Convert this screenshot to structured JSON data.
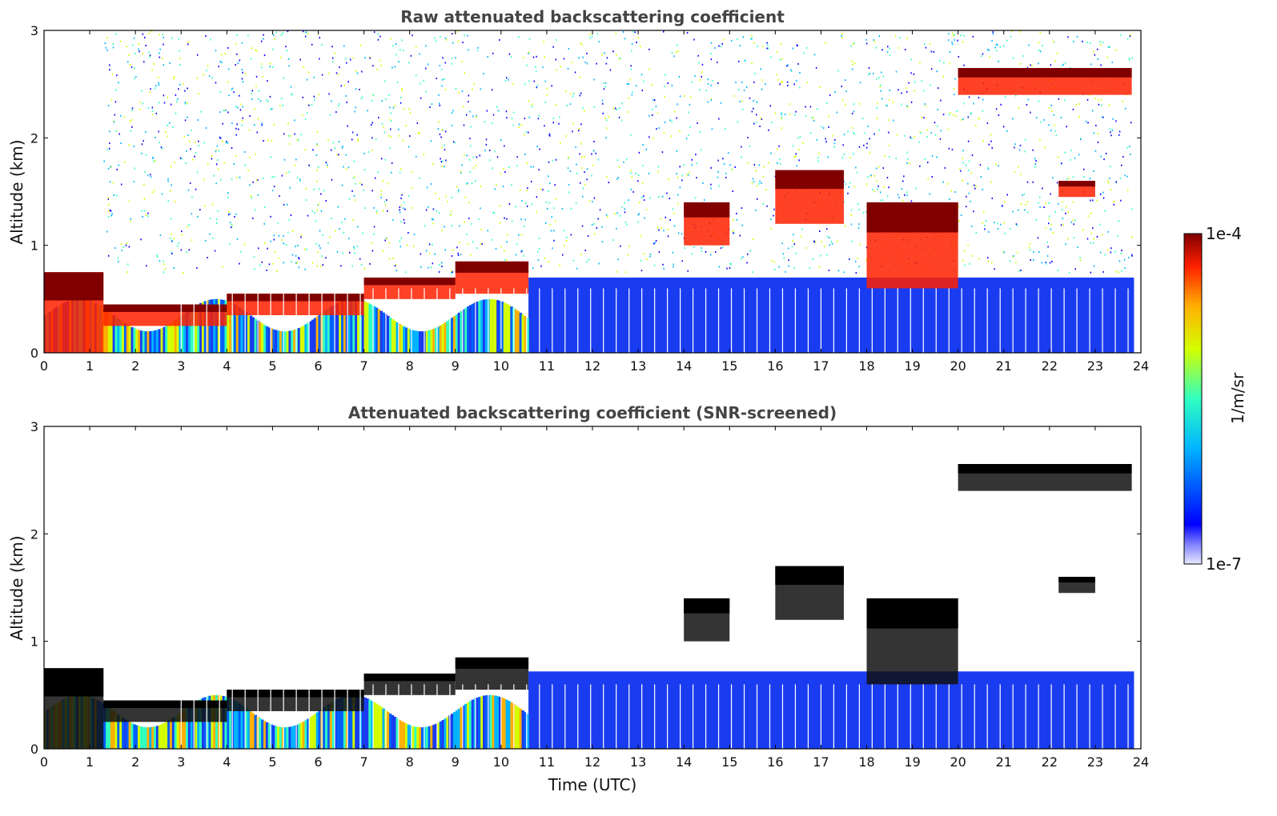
{
  "chart_data": [
    {
      "type": "heatmap",
      "title": "Raw attenuated backscattering coefficient",
      "xlabel": "",
      "ylabel": "Altitude (km)",
      "xlim": [
        0,
        24
      ],
      "ylim": [
        0,
        3
      ],
      "x_ticks": [
        "0",
        "1",
        "2",
        "3",
        "4",
        "5",
        "6",
        "7",
        "8",
        "9",
        "10",
        "11",
        "12",
        "13",
        "14",
        "15",
        "16",
        "17",
        "18",
        "19",
        "20",
        "21",
        "22",
        "23",
        "24"
      ],
      "y_ticks": [
        "0",
        "1",
        "2",
        "3"
      ],
      "cloud_layers": [
        {
          "t0": 0.0,
          "t1": 1.3,
          "z_base": 0.0,
          "z_top": 0.75
        },
        {
          "t0": 1.3,
          "t1": 4.0,
          "z_base": 0.25,
          "z_top": 0.45
        },
        {
          "t0": 4.0,
          "t1": 7.0,
          "z_base": 0.35,
          "z_top": 0.55
        },
        {
          "t0": 7.0,
          "t1": 9.0,
          "z_base": 0.5,
          "z_top": 0.7
        },
        {
          "t0": 9.0,
          "t1": 10.6,
          "z_base": 0.55,
          "z_top": 0.85
        },
        {
          "t0": 14.0,
          "t1": 15.0,
          "z_base": 1.0,
          "z_top": 1.4
        },
        {
          "t0": 16.0,
          "t1": 17.5,
          "z_base": 1.2,
          "z_top": 1.7
        },
        {
          "t0": 18.0,
          "t1": 20.0,
          "z_base": 0.6,
          "z_top": 1.4
        },
        {
          "t0": 20.0,
          "t1": 23.8,
          "z_base": 2.4,
          "z_top": 2.65
        },
        {
          "t0": 22.2,
          "t1": 23.0,
          "z_base": 1.45,
          "z_top": 1.6
        }
      ]
    },
    {
      "type": "heatmap",
      "title": "Attenuated backscattering coefficient (SNR-screened)",
      "xlabel": "Time (UTC)",
      "ylabel": "Altitude (km)",
      "xlim": [
        0,
        24
      ],
      "ylim": [
        0,
        3
      ],
      "x_ticks": [
        "0",
        "1",
        "2",
        "3",
        "4",
        "5",
        "6",
        "7",
        "8",
        "9",
        "10",
        "11",
        "12",
        "13",
        "14",
        "15",
        "16",
        "17",
        "18",
        "19",
        "20",
        "21",
        "22",
        "23",
        "24"
      ],
      "y_ticks": [
        "0",
        "1",
        "2",
        "3"
      ],
      "screened_boundary_km": 0.72
    }
  ],
  "colorbar": {
    "label": "1/m/sr",
    "max_label": "1e-4",
    "min_label": "1e-7",
    "colormap": "jet"
  }
}
